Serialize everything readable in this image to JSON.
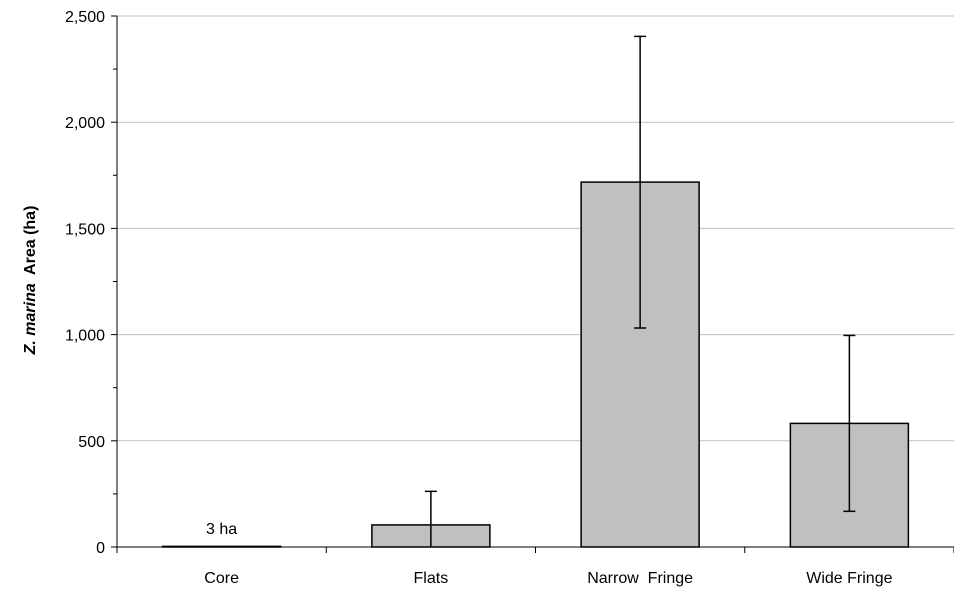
{
  "chart_data": {
    "type": "bar",
    "categories": [
      "Core",
      "Flats",
      "Narrow  Fringe",
      "Wide Fringe"
    ],
    "values": [
      3,
      104,
      1718,
      582
    ],
    "error_bars": [
      {
        "low": 3,
        "high": 3
      },
      {
        "low": 0,
        "high": 262
      },
      {
        "low": 1031,
        "high": 2404
      },
      {
        "low": 168,
        "high": 996
      }
    ],
    "y_ticks": [
      "0",
      "500",
      "1,000",
      "1,500",
      "2,000",
      "2,500"
    ],
    "y_tick_values": [
      0,
      500,
      1000,
      1500,
      2000,
      2500
    ],
    "ylim": [
      0,
      2500
    ],
    "ylabel_italic": "Z. marina",
    "ylabel_rest": "  Area (ha)",
    "xlabel": "",
    "annotations": [
      {
        "category": "Core",
        "text": "3 ha"
      }
    ],
    "grid": "horizontal",
    "colors": {
      "bar": "#c0c0c0",
      "bar_stroke": "#000000",
      "grid": "#c0c0c0",
      "axis": "#000000"
    }
  }
}
